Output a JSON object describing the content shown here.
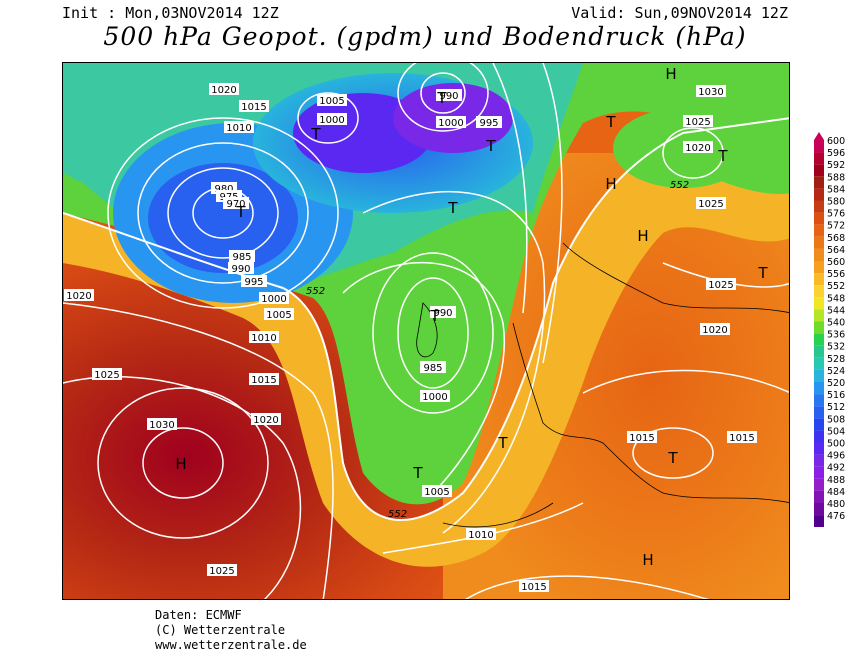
{
  "header": {
    "init": "Init : Mon,03NOV2014 12Z",
    "valid": "Valid: Sun,09NOV2014 12Z",
    "title": "500 hPa Geopot. (gpdm) und Bodendruck (hPa)"
  },
  "footer": {
    "line1": "Daten: ECMWF",
    "line2": "(C) Wetterzentrale",
    "line3": "www.wetterzentrale.de"
  },
  "legend": {
    "values": [
      "600",
      "596",
      "592",
      "588",
      "584",
      "580",
      "576",
      "572",
      "568",
      "564",
      "560",
      "556",
      "552",
      "548",
      "544",
      "540",
      "536",
      "532",
      "528",
      "524",
      "520",
      "516",
      "512",
      "508",
      "504",
      "500",
      "496",
      "492",
      "488",
      "484",
      "480",
      "476"
    ],
    "colors": [
      "#c8005a",
      "#b40032",
      "#a0001e",
      "#a01e14",
      "#b42814",
      "#c83c14",
      "#dc5014",
      "#e66414",
      "#eb7814",
      "#f08c1e",
      "#f5a01e",
      "#faba28",
      "#fad232",
      "#f0e628",
      "#b4e628",
      "#6edc28",
      "#28d250",
      "#28c88c",
      "#28c8b4",
      "#28b4dc",
      "#2896f0",
      "#2878f0",
      "#2860f0",
      "#2846f0",
      "#3c32f0",
      "#5a28f0",
      "#7828e6",
      "#8c1ee6",
      "#961ec8",
      "#8214b4",
      "#6e0aa0",
      "#50008c"
    ]
  },
  "map": {
    "pressure_labels": [
      "1025",
      "1020",
      "1015",
      "1010",
      "1005",
      "1000",
      "995",
      "990",
      "985",
      "980",
      "975",
      "970",
      "1030"
    ],
    "height_label": "552",
    "high_symbol": "H",
    "low_symbol": "T"
  }
}
